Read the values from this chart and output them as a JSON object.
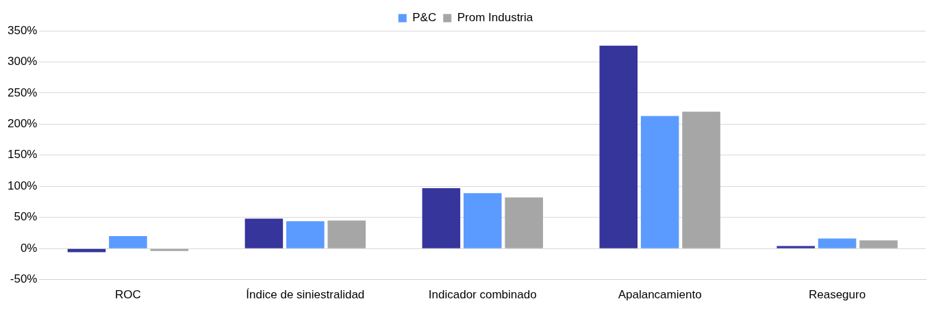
{
  "chart_data": {
    "type": "bar",
    "categories": [
      "ROC",
      "Índice de siniestralidad",
      "Indicador combinado",
      "Apalancamiento",
      "Reaseguro"
    ],
    "series": [
      {
        "color": "#35359b",
        "values": [
          -6,
          48,
          97,
          326,
          4
        ]
      },
      {
        "name": "P&C",
        "color": "#5b9bff",
        "values": [
          20,
          44,
          89,
          213,
          16
        ]
      },
      {
        "name": "Prom Industria",
        "color": "#a6a6a6",
        "values": [
          -4,
          45,
          82,
          220,
          13
        ]
      }
    ],
    "ylim": [
      -50,
      350
    ],
    "yticks": [
      {
        "value": -50,
        "label": "-50%"
      },
      {
        "value": 0,
        "label": "0%"
      },
      {
        "value": 50,
        "label": "50%"
      },
      {
        "value": 100,
        "label": "100%"
      },
      {
        "value": 150,
        "label": "150%"
      },
      {
        "value": 200,
        "label": "200%"
      },
      {
        "value": 250,
        "label": "250%"
      },
      {
        "value": 300,
        "label": "300%"
      },
      {
        "value": 350,
        "label": "350%"
      }
    ],
    "grid": "y",
    "legend": "top"
  }
}
